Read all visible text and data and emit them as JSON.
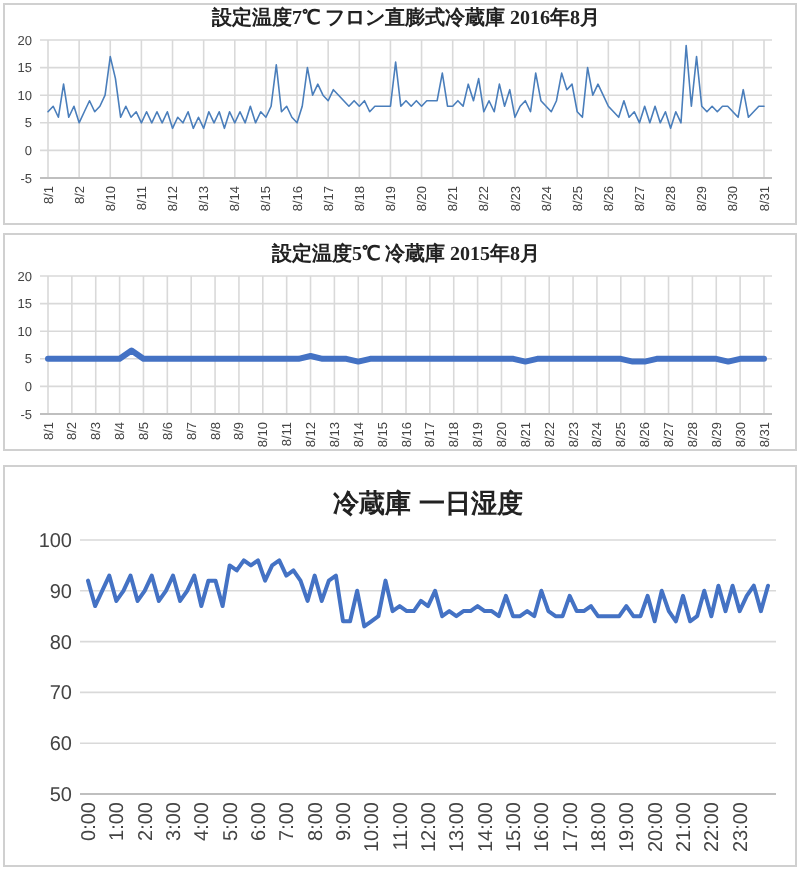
{
  "chart_data": [
    {
      "type": "line",
      "title": "設定温度7℃ フロン直膨式冷蔵庫 2016年8月",
      "categories": [
        "8/1",
        null,
        null,
        null,
        null,
        null,
        "8/2",
        null,
        null,
        null,
        null,
        null,
        "8/10",
        null,
        null,
        null,
        null,
        null,
        "8/11",
        null,
        null,
        null,
        null,
        null,
        "8/12",
        null,
        null,
        null,
        null,
        null,
        "8/13",
        null,
        null,
        null,
        null,
        null,
        "8/14",
        null,
        null,
        null,
        null,
        null,
        "8/15",
        null,
        null,
        null,
        null,
        null,
        "8/16",
        null,
        null,
        null,
        null,
        null,
        "8/17",
        null,
        null,
        null,
        null,
        null,
        "8/18",
        null,
        null,
        null,
        null,
        null,
        "8/19",
        null,
        null,
        null,
        null,
        null,
        "8/20",
        null,
        null,
        null,
        null,
        null,
        "8/21",
        null,
        null,
        null,
        null,
        null,
        "8/22",
        null,
        null,
        null,
        null,
        null,
        "8/23",
        null,
        null,
        null,
        null,
        null,
        "8/24",
        null,
        null,
        null,
        null,
        null,
        "8/25",
        null,
        null,
        null,
        null,
        null,
        "8/26",
        null,
        null,
        null,
        null,
        null,
        "8/27",
        null,
        null,
        null,
        null,
        null,
        "8/28",
        null,
        null,
        null,
        null,
        null,
        "8/29",
        null,
        null,
        null,
        null,
        null,
        "8/30",
        null,
        null,
        null,
        null,
        null,
        "8/31"
      ],
      "series": [
        {
          "color": "#4a7ebb",
          "values": [
            7,
            8,
            6,
            12,
            6,
            8,
            5,
            7,
            9,
            7,
            8,
            10,
            17,
            13,
            6,
            8,
            6,
            7,
            5,
            7,
            5,
            7,
            5,
            7,
            4,
            6,
            5,
            7,
            4,
            6,
            4,
            7,
            5,
            7,
            4,
            7,
            5,
            7,
            5,
            8,
            5,
            7,
            6,
            8,
            15.5,
            7,
            8,
            6,
            5,
            8,
            15,
            10,
            12,
            10,
            9,
            11,
            10,
            9,
            8,
            9,
            8,
            9,
            7,
            8,
            8,
            8,
            8,
            16,
            8,
            9,
            8,
            9,
            8,
            9,
            9,
            9,
            14,
            8,
            8,
            9,
            8,
            12,
            9,
            13,
            7,
            9,
            7,
            12,
            8,
            11,
            6,
            8,
            9,
            7,
            14,
            9,
            8,
            7,
            9,
            14,
            11,
            12,
            7,
            6,
            15,
            10,
            12,
            10,
            8,
            7,
            6,
            9,
            6,
            7,
            5,
            8,
            5,
            8,
            5,
            7,
            4,
            7,
            5,
            19,
            8,
            17,
            8,
            7,
            8,
            7,
            8,
            8,
            7,
            6,
            11,
            6,
            7,
            8,
            8
          ]
        }
      ],
      "ylim": [
        -5,
        20
      ],
      "yticks": [
        -5,
        0,
        5,
        10,
        15,
        20
      ],
      "grid": true
    },
    {
      "type": "line",
      "title": "設定温度5℃ 冷蔵庫 2015年8月",
      "categories": [
        "8/1",
        null,
        "8/2",
        null,
        "8/3",
        null,
        "8/4",
        null,
        "8/5",
        null,
        "8/6",
        null,
        "8/7",
        null,
        "8/8",
        null,
        "8/9",
        null,
        "8/10",
        null,
        "8/11",
        null,
        "8/12",
        null,
        "8/13",
        null,
        "8/14",
        null,
        "8/15",
        null,
        "8/16",
        null,
        "8/17",
        null,
        "8/18",
        null,
        "8/19",
        null,
        "8/20",
        null,
        "8/21",
        null,
        "8/22",
        null,
        "8/23",
        null,
        "8/24",
        null,
        "8/25",
        null,
        "8/26",
        null,
        "8/27",
        null,
        "8/28",
        null,
        "8/29",
        null,
        "8/30",
        null,
        "8/31"
      ],
      "series": [
        {
          "color": "#4472c4",
          "values": [
            5,
            5,
            5,
            5,
            5,
            5,
            5,
            6.5,
            5,
            5,
            5,
            5,
            5,
            5,
            5,
            5,
            5,
            5,
            5,
            5,
            5,
            5,
            5.5,
            5,
            5,
            5,
            4.5,
            5,
            5,
            5,
            5,
            5,
            5,
            5,
            5,
            5,
            5,
            5,
            5,
            5,
            4.5,
            5,
            5,
            5,
            5,
            5,
            5,
            5,
            5,
            4.5,
            4.5,
            5,
            5,
            5,
            5,
            5,
            5,
            4.5,
            5,
            5,
            5
          ]
        }
      ],
      "ylim": [
        -5,
        20
      ],
      "yticks": [
        -5,
        0,
        5,
        10,
        15,
        20
      ],
      "grid": true
    },
    {
      "type": "line",
      "title": "冷蔵庫 一日湿度",
      "categories": [
        "0:00",
        null,
        null,
        null,
        "1:00",
        null,
        null,
        null,
        "2:00",
        null,
        null,
        null,
        "3:00",
        null,
        null,
        null,
        "4:00",
        null,
        null,
        null,
        "5:00",
        null,
        null,
        null,
        "6:00",
        null,
        null,
        null,
        "7:00",
        null,
        null,
        null,
        "8:00",
        null,
        null,
        null,
        "9:00",
        null,
        null,
        null,
        "10:00",
        null,
        null,
        null,
        "11:00",
        null,
        null,
        null,
        "12:00",
        null,
        null,
        null,
        "13:00",
        null,
        null,
        null,
        "14:00",
        null,
        null,
        null,
        "15:00",
        null,
        null,
        null,
        "16:00",
        null,
        null,
        null,
        "17:00",
        null,
        null,
        null,
        "18:00",
        null,
        null,
        null,
        "19:00",
        null,
        null,
        null,
        "20:00",
        null,
        null,
        null,
        "21:00",
        null,
        null,
        null,
        "22:00",
        null,
        null,
        null,
        "23:00",
        null,
        null,
        null,
        null
      ],
      "series": [
        {
          "color": "#4472c4",
          "values": [
            92,
            87,
            90,
            93,
            88,
            90,
            93,
            88,
            90,
            93,
            88,
            90,
            93,
            88,
            90,
            93,
            87,
            92,
            92,
            87,
            95,
            94,
            96,
            95,
            96,
            92,
            95,
            96,
            93,
            94,
            92,
            88,
            93,
            88,
            92,
            93,
            84,
            84,
            90,
            83,
            84,
            85,
            92,
            86,
            87,
            86,
            86,
            88,
            87,
            90,
            85,
            86,
            85,
            86,
            86,
            87,
            86,
            86,
            85,
            89,
            85,
            85,
            86,
            85,
            90,
            86,
            85,
            85,
            89,
            86,
            86,
            87,
            85,
            85,
            85,
            85,
            87,
            85,
            85,
            89,
            84,
            90,
            86,
            84,
            89,
            84,
            85,
            90,
            85,
            91,
            86,
            91,
            86,
            89,
            91,
            86,
            91
          ]
        }
      ],
      "ylim": [
        50,
        100
      ],
      "yticks": [
        50,
        60,
        70,
        80,
        90,
        100
      ],
      "grid": "y"
    }
  ]
}
